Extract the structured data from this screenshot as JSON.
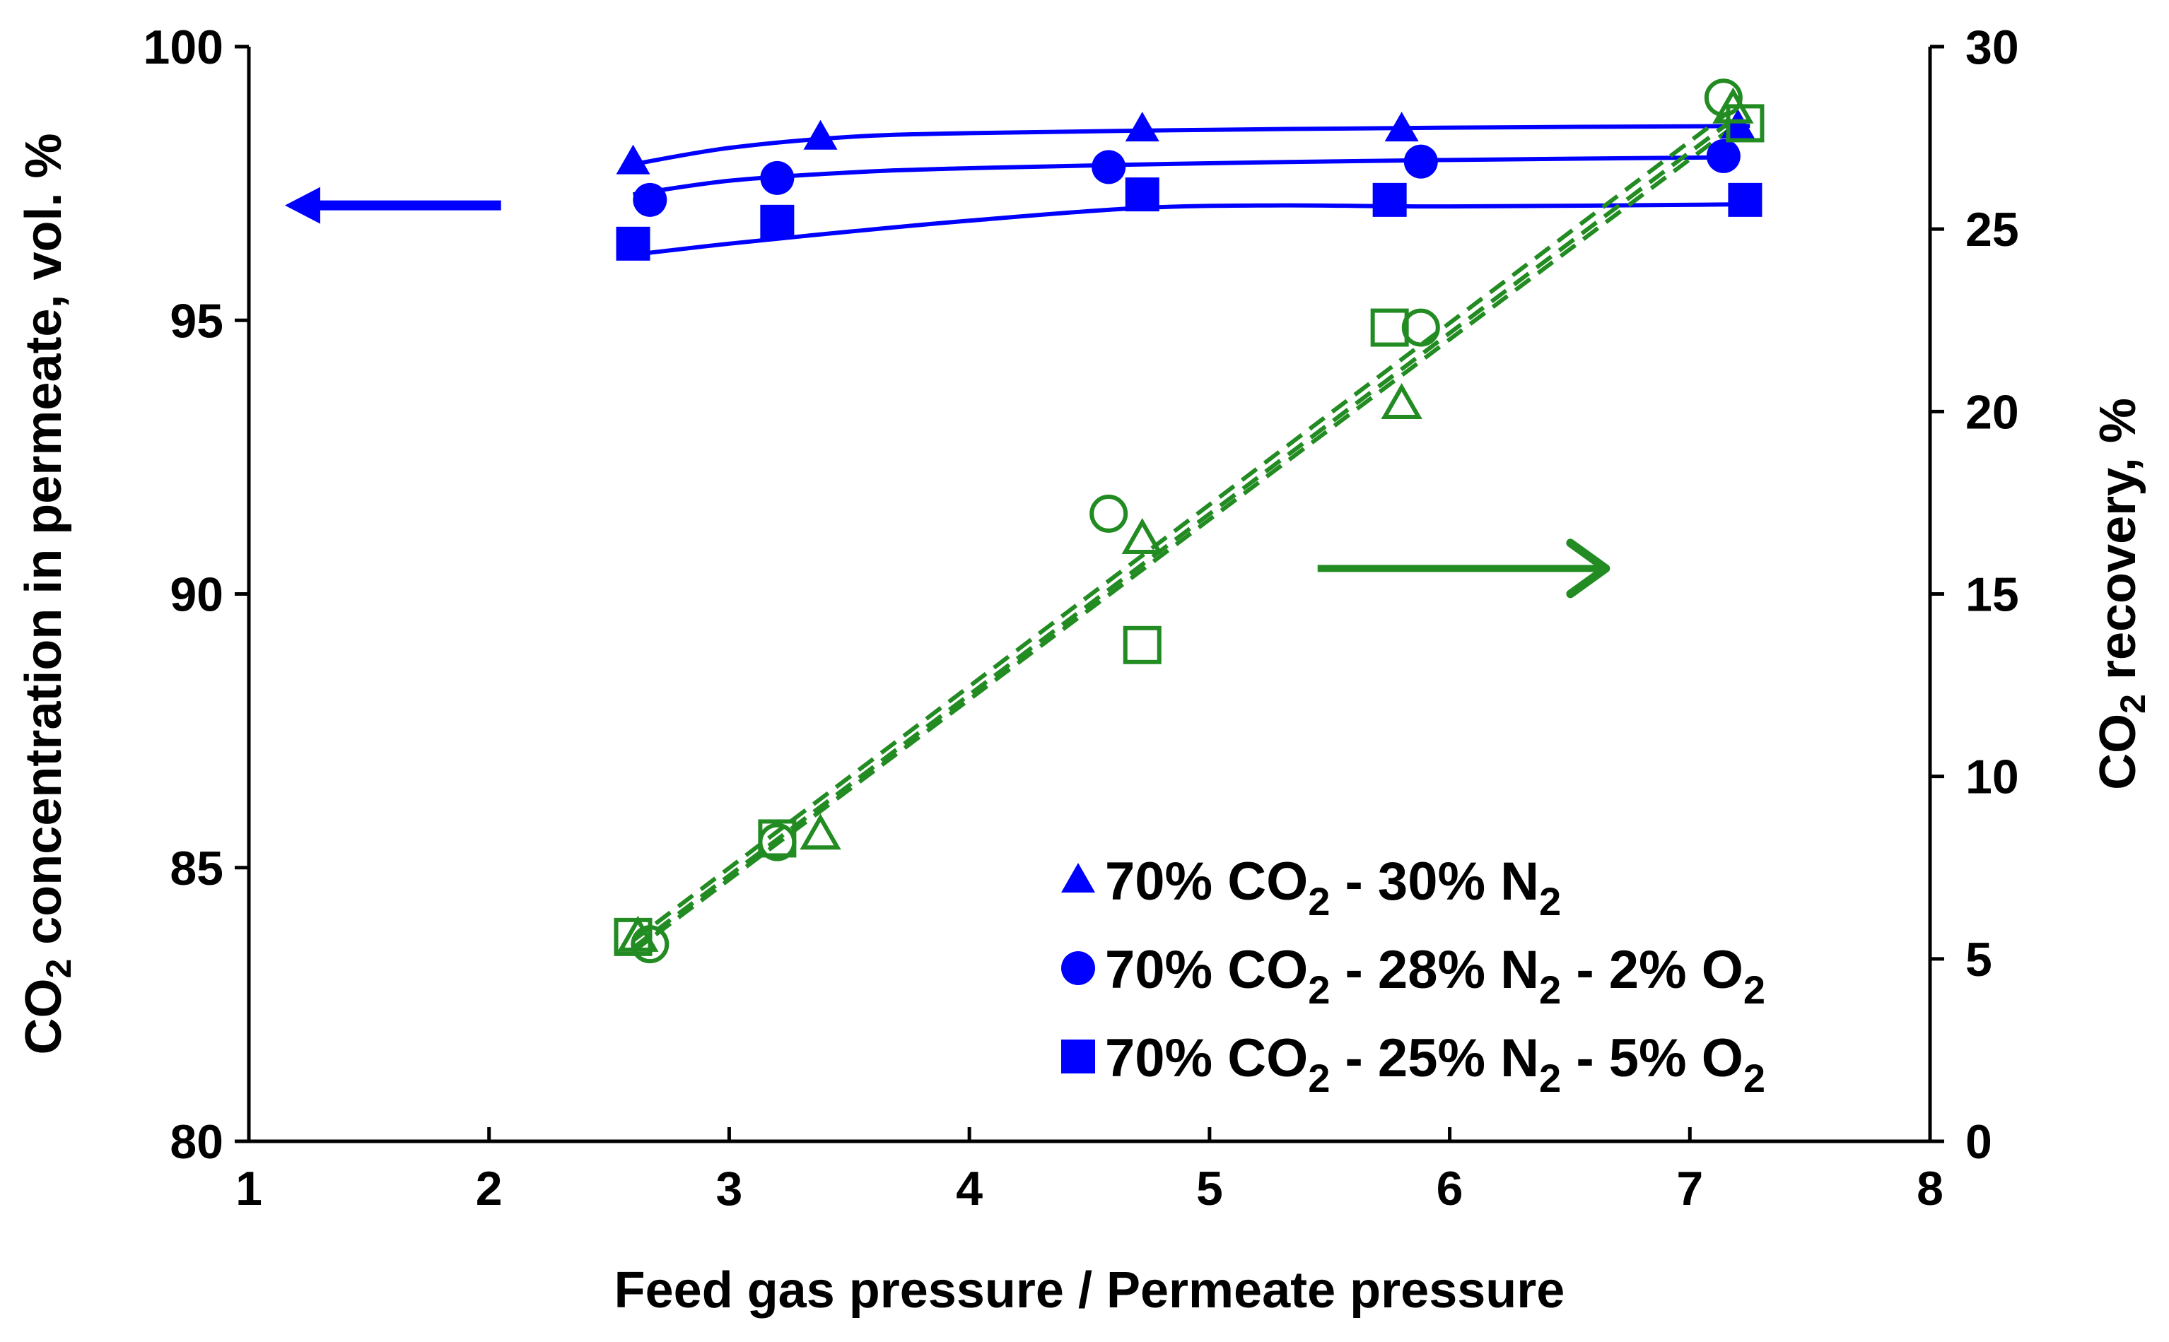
{
  "chart_data": {
    "type": "scatter",
    "title": "",
    "xlabel": "Feed gas pressure / Permeate pressure",
    "ylabel_left": {
      "prefix": "CO",
      "sub": "2",
      "suffix": " concentration in permeate, vol. %"
    },
    "ylabel_right": {
      "prefix": "CO",
      "sub": "2",
      "suffix": " recovery, %"
    },
    "xlim": [
      1,
      8
    ],
    "ylim_left": [
      80,
      100
    ],
    "ylim_right": [
      0,
      30
    ],
    "xticks": [
      1,
      2,
      3,
      4,
      5,
      6,
      7,
      8
    ],
    "yticks_left": [
      80,
      85,
      90,
      95,
      100
    ],
    "yticks_right": [
      0,
      5,
      10,
      15,
      20,
      25,
      30
    ],
    "grid": false,
    "legend_position": "bottom-right",
    "colors": {
      "concentration": "#0000ff",
      "recovery": "#228b22",
      "axes": "#000000"
    },
    "legend": [
      {
        "marker": "triangle",
        "parts": [
          {
            "t": "70%  CO"
          },
          {
            "t": "2",
            "sub": true
          },
          {
            "t": " - 30%  N"
          },
          {
            "t": "2",
            "sub": true
          }
        ]
      },
      {
        "marker": "circle",
        "parts": [
          {
            "t": "70%  CO"
          },
          {
            "t": "2",
            "sub": true
          },
          {
            "t": " - 28%  N"
          },
          {
            "t": "2",
            "sub": true
          },
          {
            "t": " - 2%  O"
          },
          {
            "t": "2",
            "sub": true
          }
        ]
      },
      {
        "marker": "square",
        "parts": [
          {
            "t": "70%  CO"
          },
          {
            "t": "2",
            "sub": true
          },
          {
            "t": " - 25%  N"
          },
          {
            "t": "2",
            "sub": true
          },
          {
            "t": " - 5%  O"
          },
          {
            "t": "2",
            "sub": true
          }
        ]
      }
    ],
    "series": [
      {
        "name": "70% CO2 - 30% N2",
        "axis": "left",
        "marker": "triangle",
        "fill": "filled",
        "x": [
          2.6,
          3.38,
          4.72,
          5.8,
          7.2
        ],
        "y": [
          97.9,
          98.35,
          98.5,
          98.5,
          98.55
        ],
        "fit": {
          "x": [
            2.6,
            3.0,
            3.5,
            4.0,
            5.0,
            6.0,
            7.25
          ],
          "y": [
            97.85,
            98.15,
            98.35,
            98.42,
            98.48,
            98.52,
            98.55
          ]
        }
      },
      {
        "name": "70% CO2 - 28% N2 - 2% O2",
        "axis": "left",
        "marker": "circle",
        "fill": "filled",
        "x": [
          2.67,
          3.2,
          4.58,
          5.88,
          7.14
        ],
        "y": [
          97.2,
          97.6,
          97.8,
          97.9,
          98.0
        ],
        "fit": {
          "x": [
            2.6,
            3.0,
            3.5,
            4.0,
            5.0,
            6.0,
            7.2
          ],
          "y": [
            97.3,
            97.55,
            97.7,
            97.78,
            97.87,
            97.93,
            97.98
          ]
        }
      },
      {
        "name": "70% CO2 - 25% N2 - 5% O2",
        "axis": "left",
        "marker": "square",
        "fill": "filled",
        "x": [
          2.6,
          3.2,
          4.72,
          5.75,
          7.23
        ],
        "y": [
          96.4,
          96.8,
          97.3,
          97.2,
          97.2
        ],
        "fit": {
          "x": [
            2.6,
            3.0,
            3.5,
            4.0,
            4.7,
            5.3,
            6.0,
            7.25
          ],
          "y": [
            96.2,
            96.4,
            96.62,
            96.82,
            97.05,
            97.1,
            97.08,
            97.12
          ]
        }
      },
      {
        "name": "Recovery 70% CO2 - 30% N2",
        "axis": "right",
        "marker": "triangle",
        "fill": "open",
        "x": [
          2.62,
          3.38,
          4.72,
          5.8,
          7.18
        ],
        "y": [
          5.6,
          8.4,
          16.5,
          20.2,
          28.3
        ],
        "fit": {
          "x": [
            2.6,
            7.2
          ],
          "y": [
            5.3,
            28.1
          ]
        }
      },
      {
        "name": "Recovery 70% CO2 - 28% N2 - 2% O2",
        "axis": "right",
        "marker": "circle",
        "fill": "open",
        "x": [
          2.67,
          3.2,
          4.58,
          5.88,
          7.14
        ],
        "y": [
          5.4,
          8.2,
          17.2,
          22.3,
          28.6
        ],
        "fit": {
          "x": [
            2.6,
            7.2
          ],
          "y": [
            5.5,
            28.4
          ]
        }
      },
      {
        "name": "Recovery 70% CO2 - 25% N2 - 5% O2",
        "axis": "right",
        "marker": "square",
        "fill": "open",
        "x": [
          2.6,
          3.2,
          4.72,
          5.75,
          7.23
        ],
        "y": [
          5.6,
          8.3,
          13.6,
          22.3,
          27.9
        ],
        "fit": {
          "x": [
            2.6,
            7.2
          ],
          "y": [
            5.2,
            27.9
          ]
        }
      }
    ],
    "annotations": [
      {
        "type": "arrow",
        "direction": "left",
        "axis": "left",
        "color": "concentration",
        "x_from": 2.05,
        "x_to": 1.15,
        "y": 97.1
      },
      {
        "type": "arrow",
        "direction": "right",
        "axis": "right",
        "color": "recovery",
        "x_from": 5.45,
        "x_to": 6.65,
        "y": 15.7
      }
    ]
  }
}
